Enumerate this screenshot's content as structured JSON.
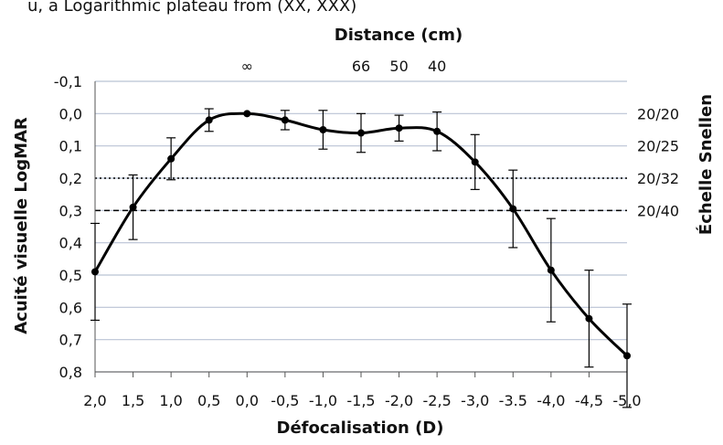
{
  "caption": "u, a Logarithmic plateau from (XX, XXX)",
  "chart_data": {
    "type": "line",
    "xlabel": "Défocalisation (D)",
    "ylabel": "Acuité visuelle LogMAR",
    "y2label": "Échelle Snellen",
    "top_axis_title": "Distance (cm)",
    "x_reversed": true,
    "ylim": [
      -0.1,
      0.8
    ],
    "y_inverted": true,
    "grid": true,
    "x_ticks": [
      2.0,
      1.5,
      1.0,
      0.5,
      0.0,
      -0.5,
      -1.0,
      -1.5,
      -2.0,
      -2.5,
      -3.0,
      -3.5,
      -4.0,
      -4.5,
      -5.0
    ],
    "x_tick_labels": [
      "2,0",
      "1,5",
      "1,0",
      "0,5",
      "0,0",
      "-0,5",
      "-1,0",
      "-1,5",
      "-2,0",
      "-2,5",
      "-3,0",
      "-3.5",
      "-4,0",
      "-4,5",
      "-5,0"
    ],
    "y_ticks": [
      -0.1,
      0.0,
      0.1,
      0.2,
      0.3,
      0.4,
      0.5,
      0.6,
      0.7,
      0.8
    ],
    "y_tick_labels": [
      "-0,1",
      "0,0",
      "0,1",
      "0,2",
      "0,3",
      "0,4",
      "0,5",
      "0,6",
      "0,7",
      "0,8"
    ],
    "snellen_labels": [
      {
        "y": 0.0,
        "label": "20/20"
      },
      {
        "y": 0.1,
        "label": "20/25"
      },
      {
        "y": 0.2,
        "label": "20/32"
      },
      {
        "y": 0.3,
        "label": "20/40"
      }
    ],
    "reference_lines": [
      {
        "y": 0.2,
        "style": "dotted"
      },
      {
        "y": 0.3,
        "style": "dashed"
      }
    ],
    "distance_labels": [
      {
        "x": 0.0,
        "label": "∞"
      },
      {
        "x": -1.5,
        "label": "66"
      },
      {
        "x": -2.0,
        "label": "50"
      },
      {
        "x": -2.5,
        "label": "40"
      }
    ],
    "series": [
      {
        "color": "#000000",
        "x": [
          2.0,
          1.5,
          1.0,
          0.5,
          0.0,
          -0.5,
          -1.0,
          -1.5,
          -2.0,
          -2.5,
          -3.0,
          -3.5,
          -4.0,
          -4.5,
          -5.0
        ],
        "y": [
          0.49,
          0.29,
          0.14,
          0.02,
          0.0,
          0.02,
          0.05,
          0.06,
          0.045,
          0.055,
          0.15,
          0.295,
          0.485,
          0.635,
          0.75
        ],
        "err": [
          0.15,
          0.1,
          0.065,
          0.035,
          0.0,
          0.03,
          0.06,
          0.06,
          0.04,
          0.06,
          0.085,
          0.12,
          0.16,
          0.15,
          0.16
        ]
      }
    ]
  }
}
